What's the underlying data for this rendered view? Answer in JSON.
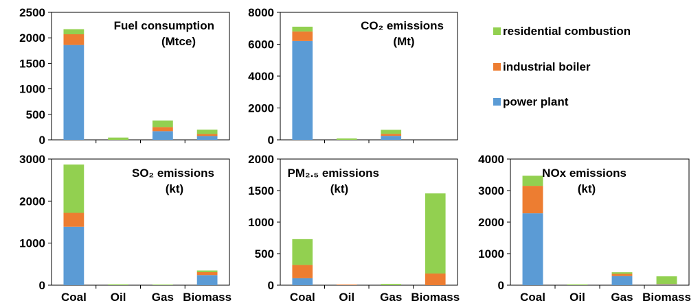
{
  "colors": {
    "power plant": "#5b9bd5",
    "industrial boiler": "#ed7d31",
    "residential combustion": "#92d050"
  },
  "legend": {
    "placement": "top-right",
    "items": [
      "residential combustion",
      "industrial boiler",
      "power plant"
    ]
  },
  "chart_data": [
    {
      "type": "bar",
      "stacked": true,
      "title": [
        "Fuel consumption",
        "(Mtce)"
      ],
      "categories": [
        "Coal",
        "Oil",
        "Gas",
        "Biomass"
      ],
      "series": [
        {
          "name": "power plant",
          "values": [
            1860,
            0,
            170,
            75
          ]
        },
        {
          "name": "industrial boiler",
          "values": [
            210,
            0,
            80,
            40
          ]
        },
        {
          "name": "residential combustion",
          "values": [
            100,
            45,
            130,
            85
          ]
        }
      ],
      "ylim": [
        0,
        2500
      ],
      "yticks": [
        0,
        500,
        1000,
        1500,
        2000,
        2500
      ],
      "grid": false,
      "show_categories": false
    },
    {
      "type": "bar",
      "stacked": true,
      "title": [
        "CO₂ emissions",
        "(Mt)"
      ],
      "categories": [
        "Coal",
        "Oil",
        "Gas",
        "Biomass"
      ],
      "series": [
        {
          "name": "power plant",
          "values": [
            6200,
            0,
            250,
            0
          ]
        },
        {
          "name": "industrial boiler",
          "values": [
            600,
            0,
            130,
            0
          ]
        },
        {
          "name": "residential combustion",
          "values": [
            300,
            90,
            250,
            0
          ]
        }
      ],
      "ylim": [
        0,
        8000
      ],
      "yticks": [
        0,
        2000,
        4000,
        6000,
        8000
      ],
      "grid": false,
      "show_categories": false
    },
    {
      "type": "bar",
      "stacked": true,
      "title": [
        "SO₂ emissions",
        "(kt)"
      ],
      "categories": [
        "Coal",
        "Oil",
        "Gas",
        "Biomass"
      ],
      "series": [
        {
          "name": "power plant",
          "values": [
            1390,
            0,
            0,
            240
          ]
        },
        {
          "name": "industrial boiler",
          "values": [
            330,
            0,
            0,
            70
          ]
        },
        {
          "name": "residential combustion",
          "values": [
            1150,
            20,
            15,
            40
          ]
        }
      ],
      "ylim": [
        0,
        3000
      ],
      "yticks": [
        0,
        1000,
        2000,
        3000
      ],
      "grid": false,
      "show_categories": true
    },
    {
      "type": "bar",
      "stacked": true,
      "title": [
        "PM₂.₅ emissions",
        "(kt)"
      ],
      "categories": [
        "Coal",
        "Oil",
        "Gas",
        "Biomass"
      ],
      "series": [
        {
          "name": "power plant",
          "values": [
            110,
            0,
            0,
            0
          ]
        },
        {
          "name": "industrial boiler",
          "values": [
            210,
            10,
            0,
            185
          ]
        },
        {
          "name": "residential combustion",
          "values": [
            410,
            0,
            20,
            1270
          ]
        }
      ],
      "ylim": [
        0,
        2000
      ],
      "yticks": [
        0,
        500,
        1000,
        1500,
        2000
      ],
      "grid": false,
      "show_categories": true
    },
    {
      "type": "bar",
      "stacked": true,
      "title": [
        "NOx emissions",
        "(kt)"
      ],
      "categories": [
        "Coal",
        "Oil",
        "Gas",
        "Biomass"
      ],
      "series": [
        {
          "name": "power plant",
          "values": [
            2280,
            0,
            290,
            20
          ]
        },
        {
          "name": "industrial boiler",
          "values": [
            870,
            0,
            70,
            20
          ]
        },
        {
          "name": "residential combustion",
          "values": [
            320,
            25,
            50,
            240
          ]
        }
      ],
      "ylim": [
        0,
        4000
      ],
      "yticks": [
        0,
        1000,
        2000,
        3000,
        4000
      ],
      "grid": false,
      "show_categories": true
    }
  ]
}
